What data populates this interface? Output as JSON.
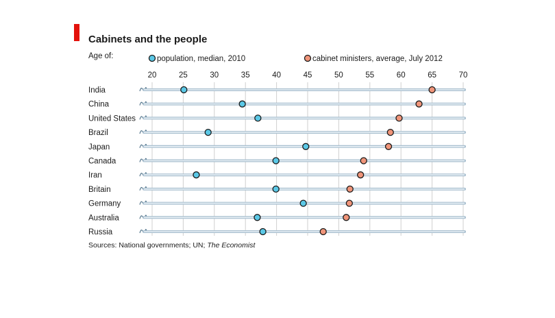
{
  "accent_color": "#e3120b",
  "colors": {
    "population": "#5bc8e6",
    "cabinet": "#f0957a",
    "track_outer": "#a9bfcf",
    "track_inner": "#e8f0f6",
    "grid": "#cfcfcf"
  },
  "chart_data": {
    "type": "dot",
    "title": "Cabinets and the people",
    "subtitle": "Age of:",
    "x_ticks": [
      20,
      25,
      30,
      35,
      40,
      45,
      50,
      55,
      60,
      65,
      70
    ],
    "xlim": [
      20,
      70
    ],
    "axis_break": "left",
    "legend_position": "top",
    "categories": [
      "India",
      "China",
      "United States",
      "Brazil",
      "Japan",
      "Canada",
      "Iran",
      "Britain",
      "Germany",
      "Australia",
      "Russia"
    ],
    "series": [
      {
        "name": "population, median, 2010",
        "color": "#5bc8e6",
        "values": [
          25.1,
          34.5,
          37.0,
          29.0,
          44.7,
          39.9,
          27.1,
          39.9,
          44.3,
          36.9,
          37.8
        ]
      },
      {
        "name": "cabinet ministers, average, July 2012",
        "color": "#f0957a",
        "values": [
          65.0,
          62.9,
          59.7,
          58.3,
          58.0,
          54.0,
          53.5,
          51.8,
          51.7,
          51.2,
          47.5
        ]
      }
    ],
    "source_prefix": "Sources: National governments; UN; ",
    "source_publication": "The Economist"
  }
}
